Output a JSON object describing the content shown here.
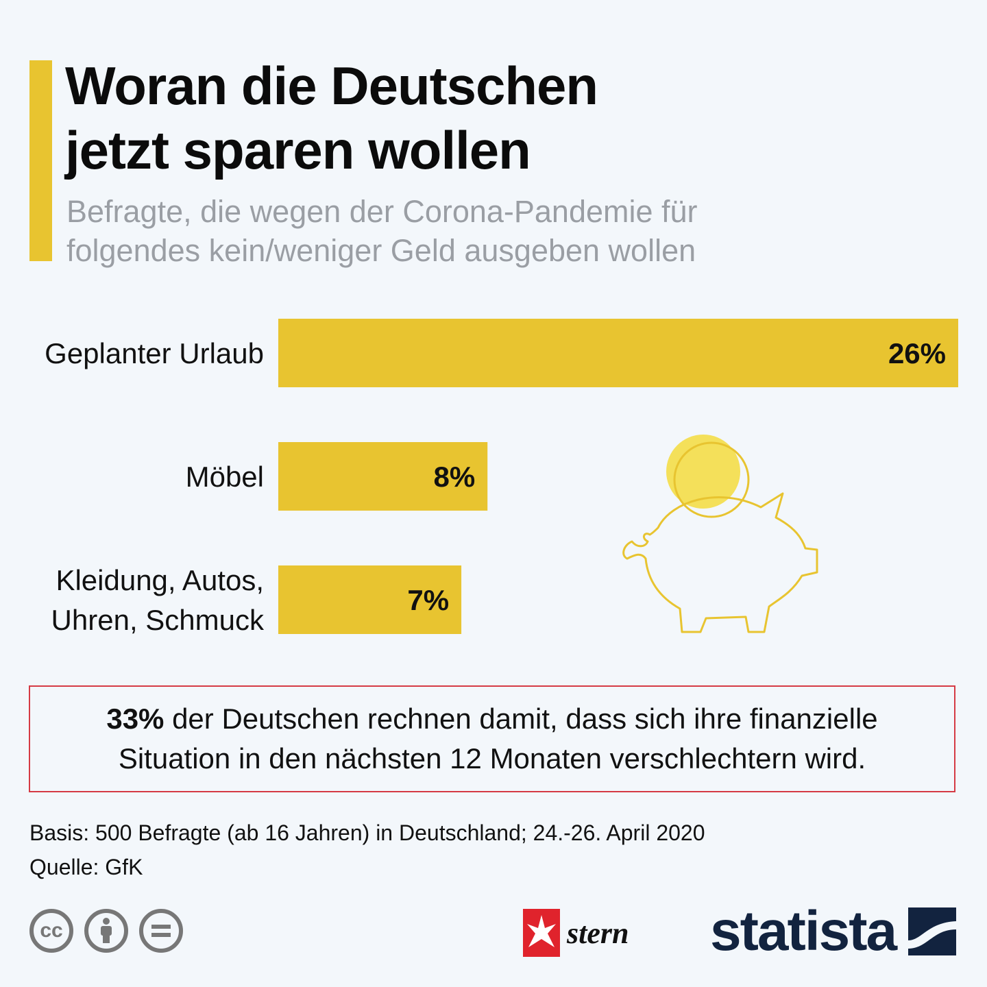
{
  "header": {
    "title": "Woran die Deutschen\njetzt sparen wollen",
    "subtitle": "Befragte, die wegen der Corona-Pandemie für\nfolgendes kein/weniger Geld ausgeben wollen"
  },
  "chart_data": {
    "type": "bar",
    "orientation": "horizontal",
    "categories": [
      "Geplanter Urlaub",
      "Möbel",
      "Kleidung, Autos,\nUhren, Schmuck"
    ],
    "values": [
      26,
      8,
      7
    ],
    "value_labels": [
      "26%",
      "8%",
      "7%"
    ],
    "unit": "%",
    "xlim": [
      0,
      26
    ],
    "bar_color": "#e8c430"
  },
  "callout": {
    "highlight": "33%",
    "text": " der Deutschen rechnen damit, dass sich ihre finanzielle Situation in den nächsten 12 Monaten verschlechtern wird."
  },
  "footer": {
    "basis": "Basis: 500 Befragte (ab 16 Jahren) in Deutschland; 24.-26. April 2020",
    "source": "Quelle: GfK",
    "brand_stern": "stern",
    "brand_statista": "statista"
  },
  "colors": {
    "accent": "#e8c430",
    "callout_border": "#d53a44",
    "brand_navy": "#12233f"
  }
}
